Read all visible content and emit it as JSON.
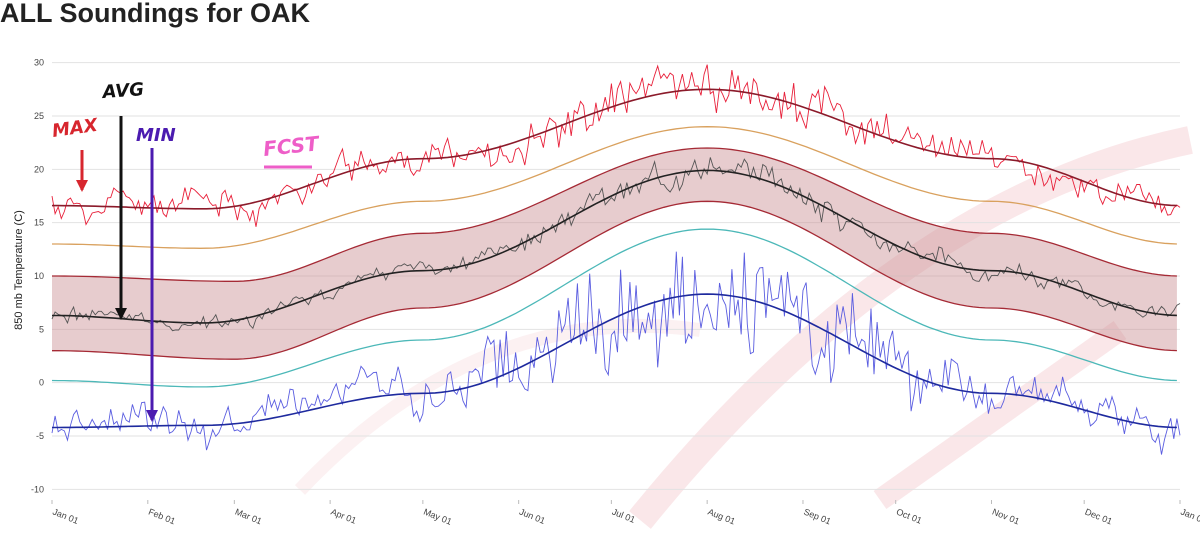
{
  "page": {
    "title": "ALL Soundings for OAK"
  },
  "chart_data": {
    "type": "line",
    "title": "ALL Soundings for OAK",
    "ylabel": "850 mb Temperature (C)",
    "xlabel": "",
    "ylim": [
      -11,
      31
    ],
    "yticks": [
      -10,
      -5,
      0,
      5,
      10,
      15,
      20,
      25,
      30
    ],
    "x_axis": "day of year",
    "x_ticks": [
      {
        "label": "Jan 01",
        "day": 1
      },
      {
        "label": "Feb 01",
        "day": 32
      },
      {
        "label": "Mar 01",
        "day": 60
      },
      {
        "label": "Apr 01",
        "day": 91
      },
      {
        "label": "May 01",
        "day": 121
      },
      {
        "label": "Jun 01",
        "day": 152
      },
      {
        "label": "Jul 01",
        "day": 182
      },
      {
        "label": "Aug 01",
        "day": 213
      },
      {
        "label": "Sep 01",
        "day": 244
      },
      {
        "label": "Oct 01",
        "day": 274
      },
      {
        "label": "Nov 01",
        "day": 305
      },
      {
        "label": "Dec 01",
        "day": 335
      },
      {
        "label": "Jan 01",
        "day": 366
      }
    ],
    "grid": true,
    "band": {
      "color": "#c98f92",
      "upper": {
        "days": [
          1,
          60,
          121,
          213,
          305,
          366
        ],
        "values": [
          10.0,
          9.5,
          14.0,
          22.0,
          14.0,
          10.0
        ]
      },
      "lower": {
        "days": [
          1,
          60,
          121,
          213,
          305,
          366
        ],
        "values": [
          3.0,
          2.2,
          7.0,
          17.0,
          7.0,
          3.0
        ]
      }
    },
    "series": [
      {
        "role": "upper-percentile",
        "color": "#d9a15e",
        "days": [
          1,
          50,
          121,
          213,
          305,
          366
        ],
        "values": [
          13.0,
          12.6,
          17.0,
          24.0,
          17.0,
          13.0
        ]
      },
      {
        "role": "lower-percentile",
        "color": "#4cb8b8",
        "days": [
          1,
          50,
          121,
          213,
          305,
          366
        ],
        "values": [
          0.2,
          -0.4,
          4.0,
          14.4,
          4.0,
          0.2
        ]
      },
      {
        "role": "max-smooth",
        "color": "#8b1a2a",
        "days": [
          1,
          50,
          121,
          213,
          305,
          366
        ],
        "values": [
          16.6,
          16.3,
          21.0,
          27.5,
          21.0,
          16.6
        ]
      },
      {
        "role": "avg-smooth",
        "color": "#222222",
        "days": [
          1,
          50,
          121,
          213,
          305,
          366
        ],
        "values": [
          6.3,
          5.6,
          10.5,
          19.9,
          10.5,
          6.3
        ]
      },
      {
        "role": "min-smooth",
        "color": "#1e2a9e",
        "days": [
          1,
          50,
          121,
          213,
          305,
          366
        ],
        "values": [
          -4.2,
          -4.0,
          -1.0,
          8.3,
          -1.0,
          -4.2
        ]
      },
      {
        "role": "max-daily",
        "color": "#e8203a",
        "days": [
          1,
          50,
          121,
          213,
          305,
          366
        ],
        "values": [
          16.6,
          16.3,
          21.0,
          27.5,
          21.0,
          16.6
        ],
        "noise": 1.6,
        "bump": 1.5
      },
      {
        "role": "avg-daily",
        "color": "#555555",
        "days": [
          1,
          50,
          121,
          213,
          305,
          366
        ],
        "values": [
          6.3,
          5.6,
          10.5,
          19.9,
          10.5,
          6.3
        ],
        "noise": 0.9,
        "bump": 1.0
      },
      {
        "role": "min-daily",
        "color": "#5a5de0",
        "days": [
          1,
          50,
          121,
          213,
          305,
          366
        ],
        "values": [
          -4.2,
          -4.0,
          -1.0,
          8.3,
          -1.0,
          -4.2
        ],
        "noise": 2.0,
        "bump": 3.5
      }
    ]
  },
  "annotations": [
    {
      "text": "MAX",
      "color": "#d7262e"
    },
    {
      "text": "AVG",
      "color": "#111111"
    },
    {
      "text": "MIN",
      "color": "#4b1bb0"
    },
    {
      "text": "FCST",
      "color": "#ee5ec8"
    }
  ],
  "colors": {
    "watermark": "#f6d7da"
  }
}
